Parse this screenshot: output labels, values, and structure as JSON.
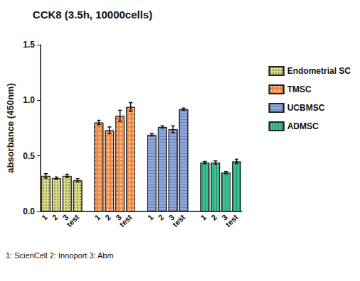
{
  "chart_data": {
    "type": "bar",
    "title": "CCK8 (3.5h, 10000cells)",
    "y_label": "absorbance (450nm)",
    "annotations": [
      "1: ScienCell 2: Innoport 3: Abm"
    ],
    "categories": [
      "1",
      "2",
      "3",
      "test",
      null,
      "1",
      "2",
      "3",
      "test",
      null,
      "1",
      "2",
      "3",
      "test",
      null,
      "1",
      "2",
      "3",
      "test"
    ],
    "series": [
      {
        "name": "Endometrial SC",
        "color": "#d9dc84",
        "values": [
          0.32,
          0.3,
          0.32,
          0.28,
          null,
          null,
          null,
          null,
          null,
          null,
          null,
          null,
          null,
          null,
          null,
          null,
          null,
          null,
          null
        ],
        "errors": [
          0.02,
          0.01,
          0.015,
          0.015,
          null,
          null,
          null,
          null,
          null,
          null,
          null,
          null,
          null,
          null,
          null,
          null,
          null,
          null,
          null
        ]
      },
      {
        "name": "TMSC",
        "color": "#ee8a45",
        "values": [
          null,
          null,
          null,
          null,
          null,
          0.8,
          0.73,
          0.86,
          0.94,
          null,
          null,
          null,
          null,
          null,
          null,
          null,
          null,
          null,
          null
        ],
        "errors": [
          null,
          null,
          null,
          null,
          null,
          0.02,
          0.03,
          0.05,
          0.04,
          null,
          null,
          null,
          null,
          null,
          null,
          null,
          null,
          null,
          null
        ]
      },
      {
        "name": "UCBMSC",
        "color": "#8fa7dc",
        "values": [
          null,
          null,
          null,
          null,
          null,
          null,
          null,
          null,
          null,
          null,
          0.69,
          0.76,
          0.74,
          0.92,
          null,
          null,
          null,
          null,
          null
        ],
        "errors": [
          null,
          null,
          null,
          null,
          null,
          null,
          null,
          null,
          null,
          null,
          0.01,
          0.01,
          0.03,
          0.01,
          null,
          null,
          null,
          null,
          null
        ]
      },
      {
        "name": "ADMSC",
        "color": "#3dbf91",
        "values": [
          null,
          null,
          null,
          null,
          null,
          null,
          null,
          null,
          null,
          null,
          null,
          null,
          null,
          null,
          null,
          0.44,
          0.44,
          0.35,
          0.45
        ],
        "errors": [
          null,
          null,
          null,
          null,
          null,
          null,
          null,
          null,
          null,
          null,
          null,
          null,
          null,
          null,
          null,
          0.01,
          0.015,
          0.01,
          0.02
        ]
      }
    ],
    "ylim": [
      0,
      1.5
    ],
    "yticks": [
      {
        "value": 0,
        "label": "0.0"
      },
      {
        "value": 0.5,
        "label": "0.5"
      },
      {
        "value": 1,
        "label": "1.0"
      },
      {
        "value": 1.5,
        "label": "1.5"
      }
    ],
    "legend": "right",
    "grid": false
  }
}
